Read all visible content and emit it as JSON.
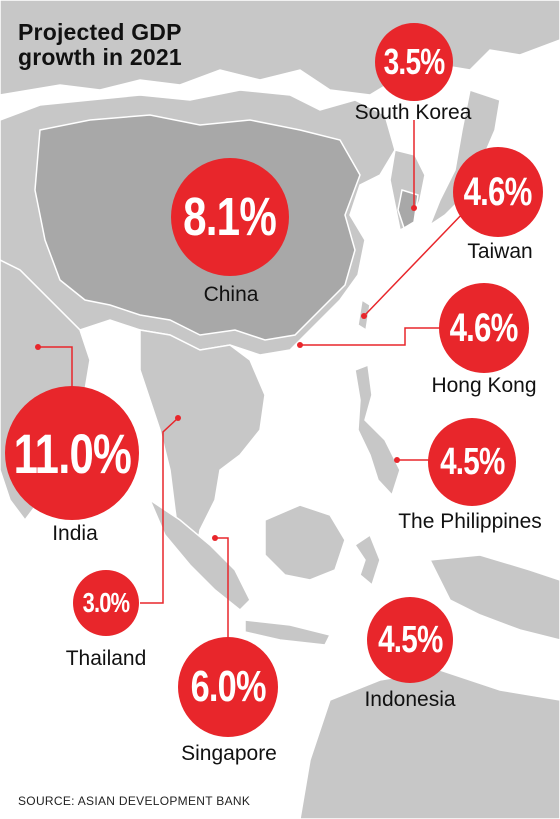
{
  "title_line1": "Projected GDP",
  "title_line2": "growth in 2021",
  "source": "SOURCE: ASIAN DEVELOPMENT BANK",
  "colors": {
    "bubble": "#e8262b",
    "map_land": "#c4c4c4",
    "map_land_dark": "#a9a9a9",
    "sea": "#ffffff"
  },
  "countries": [
    {
      "name": "South Korea",
      "value": "3.5%"
    },
    {
      "name": "China",
      "value": "8.1%"
    },
    {
      "name": "Taiwan",
      "value": "4.6%"
    },
    {
      "name": "Hong Kong",
      "value": "4.6%"
    },
    {
      "name": "India",
      "value": "11.0%"
    },
    {
      "name": "The Philippines",
      "value": "4.5%"
    },
    {
      "name": "Thailand",
      "value": "3.0%"
    },
    {
      "name": "Singapore",
      "value": "6.0%"
    },
    {
      "name": "Indonesia",
      "value": "4.5%"
    }
  ]
}
